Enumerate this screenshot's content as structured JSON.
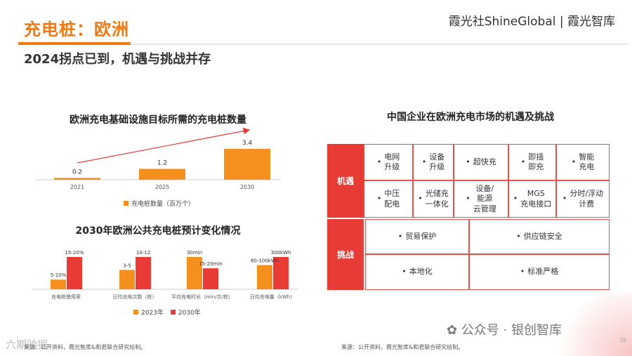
{
  "header": {
    "title": "充电桩：欧洲",
    "brand": "霞光社ShineGlobal | 霞光智库",
    "subtitle": "2024拐点已到，机遇与挑战并存"
  },
  "colors": {
    "accent": "#f07a12",
    "red": "#e83b36",
    "orange": "#f5901e"
  },
  "chart_data": [
    {
      "type": "bar",
      "title": "欧洲充电基础设施目标所需的充电桩数量",
      "categories": [
        "2021",
        "2025",
        "2030"
      ],
      "series": [
        {
          "name": "充电桩数量（百万个）",
          "values": [
            0.2,
            1.2,
            3.4
          ]
        }
      ],
      "value_labels": [
        "0.2",
        "1.2",
        "3.4"
      ],
      "ylim": [
        0,
        3.4
      ]
    },
    {
      "type": "bar",
      "title": "2030年欧洲公共充电桩预计变化情况",
      "categories": [
        "充电桩使用率",
        "日均充电次数（桩）",
        "平均充电时长（min/次/桩）",
        "日均充电量（kWh）"
      ],
      "series": [
        {
          "name": "2023年",
          "values": [
            0.3,
            0.6,
            1.0,
            0.75
          ]
        },
        {
          "name": "2030年",
          "values": [
            1.0,
            1.0,
            0.65,
            1.0
          ]
        }
      ],
      "labels_2023": [
        "5-10%",
        "3-5",
        "30min",
        "80-100kWh"
      ],
      "labels_2030": [
        "15-20%",
        "10-12",
        "15-20min",
        "300kWh"
      ]
    }
  ],
  "opportunities": {
    "title": "中国企业在欧洲充电市场的机遇及挑战",
    "opp_label": "机遇",
    "challenge_label": "挑战",
    "opp_row1": [
      "电网\n升级",
      "设备\n升级",
      "超快充",
      "即插\n即充",
      "智能\n充电"
    ],
    "opp_row2": [
      "中压\n配电",
      "光储充\n一体化",
      "设备/\n能源\n云管理",
      "MGS\n充电接口",
      "分时/浮动\n计费"
    ],
    "challenges": [
      "贸易保护",
      "供应链安全",
      "本地化",
      "标准严格"
    ]
  },
  "footer": {
    "source_left": "来源：公开资料，霞光智库&和君联合研究绘制。",
    "source_right": "来源：公开资料，霞光智库&和君联合研究绘制。",
    "watermark": "公众号 · 银创智库",
    "watermark_left": "六期验据",
    "page": "38"
  }
}
